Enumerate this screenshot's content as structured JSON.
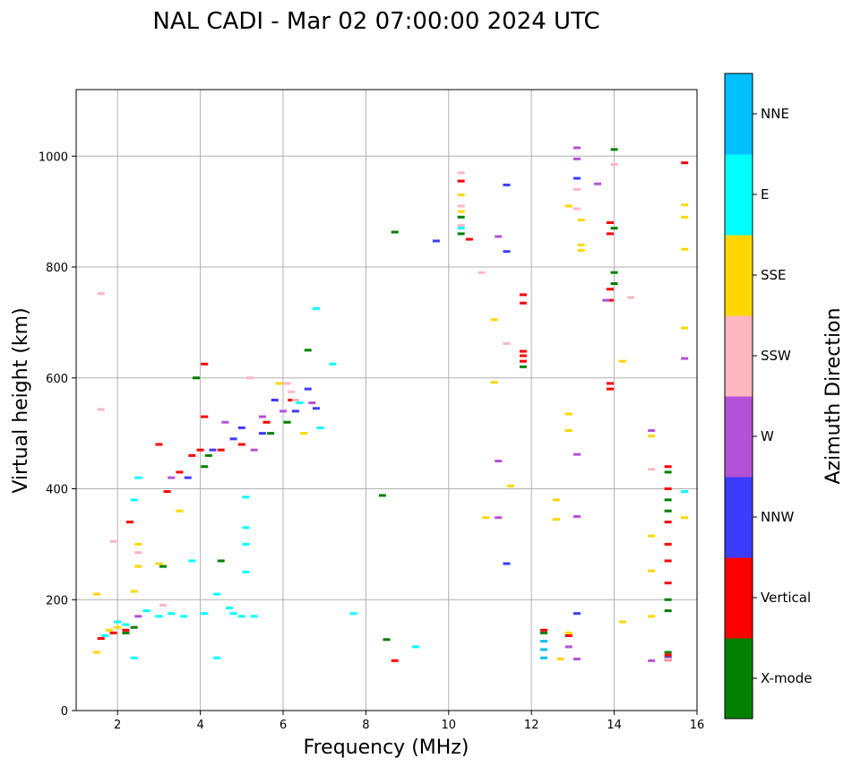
{
  "chart_data": {
    "type": "scatter",
    "title": "NAL CADI - Mar 02 07:00:00 2024 UTC",
    "xlabel": "Frequency (MHz)",
    "ylabel": "Virtual height (km)",
    "xlim": [
      1,
      16
    ],
    "ylim": [
      0,
      1120
    ],
    "xticks": [
      2,
      4,
      6,
      8,
      10,
      12,
      14,
      16
    ],
    "yticks": [
      0,
      200,
      400,
      600,
      800,
      1000
    ],
    "grid": true,
    "colorbar": {
      "title": "Azimuth Direction",
      "categories": [
        {
          "name": "X-mode",
          "color": "#008000"
        },
        {
          "name": "Vertical",
          "color": "#ff0000"
        },
        {
          "name": "NNW",
          "color": "#3c3cff"
        },
        {
          "name": "W",
          "color": "#b452d6"
        },
        {
          "name": "SSW",
          "color": "#ffb6c1"
        },
        {
          "name": "SSE",
          "color": "#ffd700"
        },
        {
          "name": "E",
          "color": "#00ffff"
        },
        {
          "name": "NNE",
          "color": "#00bfff"
        }
      ]
    },
    "series": [
      {
        "name": "X-mode",
        "points": [
          [
            2.2,
            140
          ],
          [
            2.4,
            150
          ],
          [
            3.9,
            600
          ],
          [
            4.1,
            440
          ],
          [
            4.2,
            460
          ],
          [
            5.7,
            500
          ],
          [
            6.1,
            520
          ],
          [
            6.6,
            650
          ],
          [
            8.4,
            388
          ],
          [
            8.5,
            128
          ],
          [
            8.7,
            863
          ],
          [
            10.3,
            860
          ],
          [
            10.3,
            890
          ],
          [
            11.8,
            620
          ],
          [
            12.3,
            140
          ],
          [
            14.0,
            1012
          ],
          [
            14.0,
            870
          ],
          [
            14.0,
            790
          ],
          [
            14.0,
            770
          ],
          [
            15.3,
            430
          ],
          [
            15.3,
            380
          ],
          [
            15.3,
            360
          ],
          [
            15.3,
            200
          ],
          [
            15.3,
            180
          ],
          [
            15.3,
            105
          ],
          [
            15.3,
            95
          ],
          [
            3.1,
            260
          ],
          [
            4.5,
            270
          ]
        ]
      },
      {
        "name": "Vertical",
        "points": [
          [
            1.6,
            130
          ],
          [
            1.9,
            140
          ],
          [
            2.2,
            145
          ],
          [
            2.3,
            340
          ],
          [
            3.0,
            480
          ],
          [
            3.2,
            395
          ],
          [
            3.5,
            430
          ],
          [
            3.8,
            460
          ],
          [
            4.0,
            470
          ],
          [
            4.1,
            530
          ],
          [
            4.1,
            625
          ],
          [
            4.5,
            470
          ],
          [
            5.0,
            480
          ],
          [
            5.6,
            520
          ],
          [
            6.2,
            560
          ],
          [
            8.7,
            90
          ],
          [
            10.3,
            955
          ],
          [
            10.5,
            850
          ],
          [
            11.8,
            750
          ],
          [
            11.8,
            735
          ],
          [
            11.8,
            648
          ],
          [
            11.8,
            640
          ],
          [
            11.8,
            630
          ],
          [
            12.3,
            145
          ],
          [
            12.9,
            135
          ],
          [
            13.9,
            880
          ],
          [
            13.9,
            860
          ],
          [
            13.9,
            760
          ],
          [
            13.9,
            740
          ],
          [
            13.9,
            590
          ],
          [
            13.9,
            580
          ],
          [
            15.7,
            988
          ],
          [
            15.3,
            440
          ],
          [
            15.3,
            400
          ],
          [
            15.3,
            340
          ],
          [
            15.3,
            300
          ],
          [
            15.3,
            270
          ],
          [
            15.3,
            230
          ],
          [
            15.3,
            100
          ],
          [
            15.3,
            92
          ]
        ]
      },
      {
        "name": "NNW",
        "points": [
          [
            3.7,
            420
          ],
          [
            4.3,
            470
          ],
          [
            4.8,
            490
          ],
          [
            5.0,
            510
          ],
          [
            5.5,
            500
          ],
          [
            5.8,
            560
          ],
          [
            6.3,
            540
          ],
          [
            6.6,
            580
          ],
          [
            6.8,
            545
          ],
          [
            9.7,
            847
          ],
          [
            11.4,
            948
          ],
          [
            11.4,
            828
          ],
          [
            11.4,
            265
          ],
          [
            13.1,
            960
          ],
          [
            13.1,
            175
          ],
          [
            15.3,
            95
          ]
        ]
      },
      {
        "name": "W",
        "points": [
          [
            2.5,
            170
          ],
          [
            3.3,
            420
          ],
          [
            4.6,
            520
          ],
          [
            5.3,
            470
          ],
          [
            5.5,
            530
          ],
          [
            6.0,
            540
          ],
          [
            6.7,
            555
          ],
          [
            11.2,
            855
          ],
          [
            11.2,
            450
          ],
          [
            11.2,
            348
          ],
          [
            13.1,
            1015
          ],
          [
            13.1,
            995
          ],
          [
            13.1,
            462
          ],
          [
            13.1,
            350
          ],
          [
            13.1,
            93
          ],
          [
            12.9,
            115
          ],
          [
            13.6,
            950
          ],
          [
            13.8,
            740
          ],
          [
            14.9,
            505
          ],
          [
            14.9,
            90
          ],
          [
            15.7,
            635
          ]
        ]
      },
      {
        "name": "SSW",
        "points": [
          [
            1.6,
            752
          ],
          [
            1.6,
            543
          ],
          [
            1.9,
            305
          ],
          [
            2.5,
            285
          ],
          [
            3.1,
            190
          ],
          [
            5.2,
            600
          ],
          [
            6.1,
            590
          ],
          [
            6.2,
            575
          ],
          [
            6.3,
            560
          ],
          [
            10.3,
            970
          ],
          [
            10.3,
            910
          ],
          [
            10.3,
            875
          ],
          [
            10.8,
            790
          ],
          [
            11.4,
            662
          ],
          [
            13.1,
            940
          ],
          [
            13.1,
            905
          ],
          [
            14.0,
            985
          ],
          [
            14.4,
            745
          ],
          [
            14.9,
            435
          ],
          [
            15.3,
            93
          ]
        ]
      },
      {
        "name": "SSE",
        "points": [
          [
            1.5,
            210
          ],
          [
            1.5,
            105
          ],
          [
            1.8,
            145
          ],
          [
            2.0,
            150
          ],
          [
            2.5,
            300
          ],
          [
            2.5,
            260
          ],
          [
            2.4,
            215
          ],
          [
            3.0,
            265
          ],
          [
            3.5,
            360
          ],
          [
            5.9,
            590
          ],
          [
            6.5,
            500
          ],
          [
            10.3,
            930
          ],
          [
            10.3,
            900
          ],
          [
            10.9,
            348
          ],
          [
            11.1,
            705
          ],
          [
            11.1,
            592
          ],
          [
            11.5,
            405
          ],
          [
            12.6,
            380
          ],
          [
            12.6,
            345
          ],
          [
            12.7,
            93
          ],
          [
            12.9,
            910
          ],
          [
            12.9,
            535
          ],
          [
            12.9,
            505
          ],
          [
            12.9,
            140
          ],
          [
            13.2,
            885
          ],
          [
            13.2,
            840
          ],
          [
            13.2,
            830
          ],
          [
            14.2,
            630
          ],
          [
            14.2,
            160
          ],
          [
            14.9,
            495
          ],
          [
            14.9,
            315
          ],
          [
            14.9,
            252
          ],
          [
            14.9,
            170
          ],
          [
            15.7,
            912
          ],
          [
            15.7,
            890
          ],
          [
            15.7,
            832
          ],
          [
            15.7,
            690
          ],
          [
            15.7,
            348
          ]
        ]
      },
      {
        "name": "E",
        "points": [
          [
            1.7,
            135
          ],
          [
            2.0,
            160
          ],
          [
            2.2,
            155
          ],
          [
            2.4,
            380
          ],
          [
            2.5,
            420
          ],
          [
            2.4,
            95
          ],
          [
            2.7,
            180
          ],
          [
            3.0,
            170
          ],
          [
            3.3,
            175
          ],
          [
            3.6,
            170
          ],
          [
            3.8,
            270
          ],
          [
            4.1,
            175
          ],
          [
            4.4,
            95
          ],
          [
            4.4,
            210
          ],
          [
            4.7,
            185
          ],
          [
            4.8,
            175
          ],
          [
            5.0,
            170
          ],
          [
            5.1,
            250
          ],
          [
            5.1,
            300
          ],
          [
            5.1,
            330
          ],
          [
            5.1,
            385
          ],
          [
            5.3,
            170
          ],
          [
            6.4,
            555
          ],
          [
            6.8,
            725
          ],
          [
            6.9,
            510
          ],
          [
            7.2,
            625
          ],
          [
            7.7,
            175
          ],
          [
            9.2,
            115
          ],
          [
            10.3,
            870
          ],
          [
            15.7,
            395
          ]
        ]
      },
      {
        "name": "NNE",
        "points": [
          [
            12.3,
            125
          ],
          [
            12.3,
            110
          ],
          [
            12.3,
            95
          ]
        ]
      }
    ]
  }
}
